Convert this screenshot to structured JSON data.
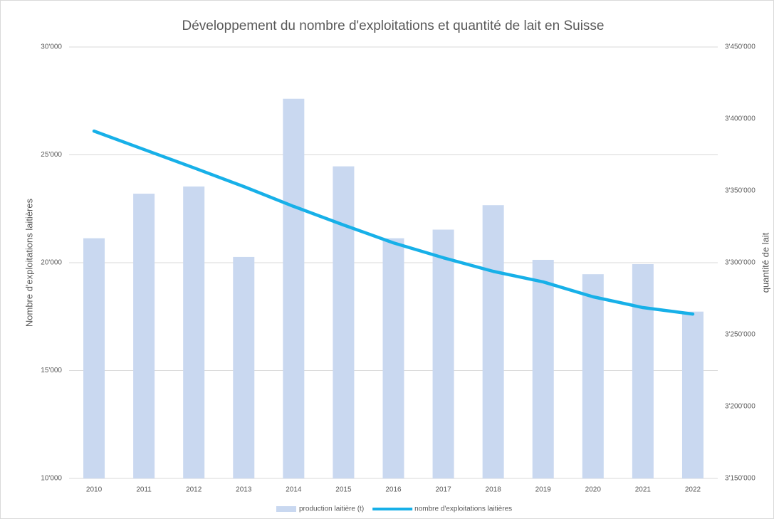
{
  "chart_data": {
    "type": "bar-line",
    "title": "Développement du nombre d'exploitations et quantité de lait en Suisse",
    "ylabel": "Nombre d'exploitations laitières",
    "y2label": "quantité de lait",
    "categories": [
      "2010",
      "2011",
      "2012",
      "2013",
      "2014",
      "2015",
      "2016",
      "2017",
      "2018",
      "2019",
      "2020",
      "2021",
      "2022"
    ],
    "series": [
      {
        "name": "production laitière (t)",
        "type": "bar",
        "axis": "y2",
        "color": "#c9d8f0",
        "values": [
          3317000,
          3348000,
          3353000,
          3304000,
          3414000,
          3367000,
          3317000,
          3323000,
          3340000,
          3302000,
          3292000,
          3299000,
          3266000
        ]
      },
      {
        "name": "nombre d'exploitations laitières",
        "type": "line",
        "axis": "y",
        "color": "#17b0e8",
        "values": [
          26100,
          25250,
          24400,
          23530,
          22610,
          21750,
          20920,
          20230,
          19600,
          19110,
          18420,
          17920,
          17620
        ]
      }
    ],
    "ylim": [
      10000,
      30000
    ],
    "yticks": [
      {
        "value": 10000,
        "label": "10'000"
      },
      {
        "value": 15000,
        "label": "15'000"
      },
      {
        "value": 20000,
        "label": "20'000"
      },
      {
        "value": 25000,
        "label": "25'000"
      },
      {
        "value": 30000,
        "label": "30'000"
      }
    ],
    "y2lim": [
      3150000,
      3450000
    ],
    "y2ticks": [
      {
        "value": 3150000,
        "label": "3'150'000"
      },
      {
        "value": 3200000,
        "label": "3'200'000"
      },
      {
        "value": 3250000,
        "label": "3'250'000"
      },
      {
        "value": 3300000,
        "label": "3'300'000"
      },
      {
        "value": 3350000,
        "label": "3'350'000"
      },
      {
        "value": 3400000,
        "label": "3'400'000"
      },
      {
        "value": 3450000,
        "label": "3'450'000"
      }
    ],
    "grid": true,
    "legend": "bottom"
  }
}
